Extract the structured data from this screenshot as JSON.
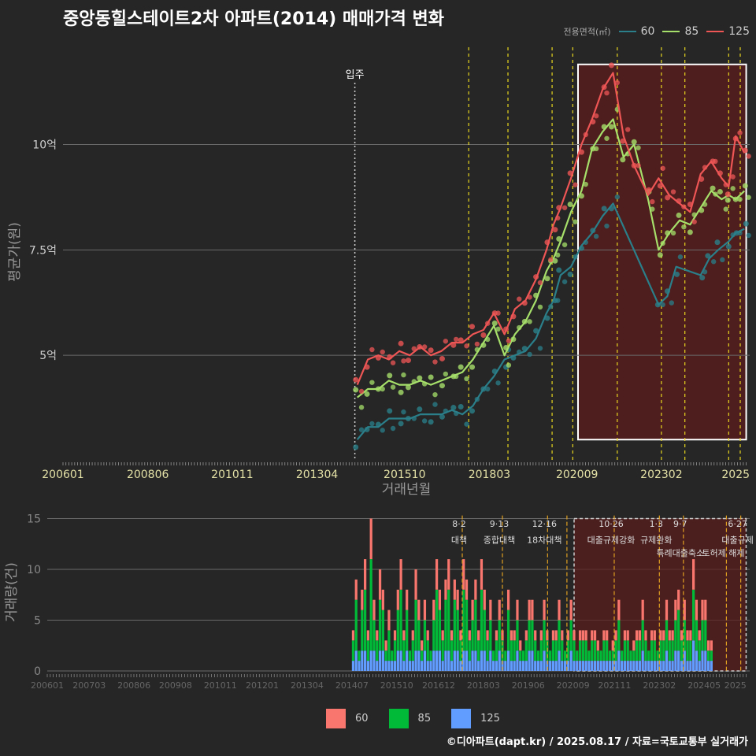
{
  "title": "중앙동힐스테이트2차 아파트(2014) 매매가격 변화",
  "footer": "©디아파트(dapt.kr) / 2025.08.17 / 자료=국토교통부 실거래가",
  "legend_title": "전용면적(㎡)",
  "colors": {
    "line60": "#2a7f8a",
    "line85": "#a6e06a",
    "line125": "#ee5555",
    "bar60": "#f8766d",
    "bar85": "#00ba38",
    "bar125": "#619cff",
    "policy": "#e8d71e",
    "highlight": "#5c1c1c"
  },
  "chart_data": [
    {
      "type": "line",
      "title": "중앙동힐스테이트2차 아파트(2014) 매매가격 변화",
      "xlabel": "거래년월",
      "ylabel": "평균가(원)",
      "x_ticks": [
        "200601",
        "200806",
        "201011",
        "201304",
        "201510",
        "201803",
        "202009",
        "202302",
        "2025"
      ],
      "y_ticks": [
        {
          "value": 5,
          "label": "5억"
        },
        {
          "value": 7.5,
          "label": "7.5억"
        },
        {
          "value": 10,
          "label": "10억"
        }
      ],
      "xlim": [
        2006.0,
        2025.6
      ],
      "ylim": [
        2.5,
        12.4
      ],
      "move_in": {
        "x": 2014.33,
        "label": "입주"
      },
      "policy_lines": [
        2017.58,
        2018.7,
        2019.96,
        2020.55,
        2021.82,
        2023.08,
        2023.75,
        2025.0,
        2025.33
      ],
      "highlight": {
        "x0": 2020.7,
        "x1": 2025.5,
        "y0": 3.0,
        "y1": 11.9
      },
      "series": [
        {
          "name": "60",
          "x": [
            2014.4,
            2014.7,
            2015.0,
            2015.3,
            2015.6,
            2015.9,
            2016.2,
            2016.5,
            2016.8,
            2017.1,
            2017.4,
            2017.7,
            2018.0,
            2018.3,
            2018.6,
            2018.9,
            2019.2,
            2019.5,
            2019.8,
            2020.0,
            2020.2,
            2020.5,
            2020.8,
            2021.1,
            2021.4,
            2021.7,
            2023.0,
            2023.25,
            2023.5,
            2024.2,
            2024.45,
            2024.7,
            2025.0,
            2025.2,
            2025.45
          ],
          "values": [
            3.0,
            3.3,
            3.3,
            3.5,
            3.5,
            3.5,
            3.6,
            3.6,
            3.6,
            3.7,
            3.6,
            3.8,
            4.2,
            4.5,
            4.9,
            5.0,
            5.1,
            5.4,
            6.0,
            6.3,
            6.9,
            7.1,
            7.6,
            7.9,
            8.3,
            8.6,
            6.2,
            6.4,
            7.1,
            6.9,
            7.3,
            7.5,
            7.7,
            7.9,
            8.0
          ]
        },
        {
          "name": "85",
          "x": [
            2014.4,
            2014.7,
            2015.0,
            2015.3,
            2015.6,
            2015.9,
            2016.2,
            2016.5,
            2016.8,
            2017.1,
            2017.4,
            2017.7,
            2018.0,
            2018.3,
            2018.6,
            2018.9,
            2019.2,
            2019.5,
            2019.8,
            2020.0,
            2020.2,
            2020.5,
            2020.8,
            2021.1,
            2021.4,
            2021.7,
            2022.0,
            2022.3,
            2022.7,
            2023.0,
            2023.3,
            2023.6,
            2023.9,
            2024.2,
            2024.5,
            2024.8,
            2025.0,
            2025.2,
            2025.45
          ],
          "values": [
            4.0,
            4.2,
            4.2,
            4.4,
            4.3,
            4.3,
            4.4,
            4.3,
            4.4,
            4.5,
            4.6,
            4.9,
            5.3,
            5.7,
            5.0,
            5.5,
            5.8,
            6.3,
            7.0,
            7.3,
            7.7,
            8.4,
            8.9,
            9.9,
            10.3,
            10.6,
            9.7,
            10.0,
            8.7,
            7.5,
            7.9,
            8.2,
            8.1,
            8.5,
            8.9,
            8.7,
            8.8,
            8.7,
            8.9
          ]
        },
        {
          "name": "125",
          "x": [
            2014.4,
            2014.7,
            2015.0,
            2015.3,
            2015.6,
            2015.9,
            2016.2,
            2016.5,
            2016.8,
            2017.1,
            2017.4,
            2017.7,
            2018.0,
            2018.3,
            2018.6,
            2018.9,
            2019.2,
            2019.5,
            2019.8,
            2020.0,
            2020.2,
            2020.5,
            2020.8,
            2021.1,
            2021.4,
            2021.7,
            2022.0,
            2022.3,
            2022.7,
            2023.0,
            2023.3,
            2023.6,
            2023.9,
            2024.2,
            2024.5,
            2024.8,
            2025.0,
            2025.2,
            2025.45
          ],
          "values": [
            4.3,
            4.9,
            5.0,
            4.9,
            5.1,
            5.0,
            5.2,
            5.0,
            5.1,
            5.3,
            5.3,
            5.5,
            5.6,
            6.0,
            5.5,
            6.1,
            6.3,
            6.8,
            7.5,
            8.1,
            8.5,
            9.2,
            10.0,
            10.6,
            11.3,
            11.7,
            10.2,
            9.5,
            8.8,
            9.2,
            8.8,
            8.6,
            8.4,
            9.3,
            9.6,
            9.2,
            9.0,
            10.2,
            9.8
          ]
        }
      ]
    },
    {
      "type": "bar",
      "xlabel": "",
      "ylabel": "거래량(건)",
      "x_ticks": [
        "200601",
        "200703",
        "200806",
        "200908",
        "201011",
        "201201",
        "201304",
        "201407",
        "201510",
        "201612",
        "201803",
        "201906",
        "202009",
        "202111",
        "202302",
        "202405",
        "2025"
      ],
      "y_ticks": [
        0,
        5,
        10,
        15
      ],
      "ylim": [
        0,
        15.5
      ],
      "xlim": [
        2006.0,
        2025.6
      ],
      "highlight": {
        "x0": 2020.7,
        "x1": 2025.5
      },
      "stack_order": [
        "125",
        "85",
        "60"
      ],
      "start": 2014.5,
      "month_step": 0.0833,
      "series": [
        {
          "name": "60",
          "values": [
            1,
            2,
            0,
            2,
            3,
            1,
            4,
            2,
            1,
            3,
            2,
            1,
            2,
            0,
            1,
            2,
            3,
            1,
            2,
            0,
            1,
            3,
            2,
            1,
            2,
            1,
            0,
            2,
            3,
            2,
            1,
            2,
            3,
            1,
            2,
            2,
            1,
            3,
            2,
            1,
            2,
            2,
            1,
            3,
            2,
            1,
            2,
            0,
            1,
            2,
            1,
            0,
            2,
            1,
            1,
            2,
            1,
            0,
            1,
            2,
            2,
            1,
            0,
            1,
            2,
            1,
            0,
            1,
            1,
            2,
            1,
            0,
            1,
            2,
            1,
            0,
            1,
            1,
            1,
            0,
            1,
            1,
            1,
            0,
            1,
            1,
            0,
            1,
            1,
            2,
            0,
            1,
            1,
            0,
            1,
            1,
            1,
            2,
            1,
            0,
            1,
            1,
            0,
            1,
            1,
            2,
            1,
            1,
            2,
            2,
            1,
            2,
            1,
            1,
            3,
            2,
            1,
            2,
            2,
            1,
            1
          ]
        },
        {
          "name": "85",
          "values": [
            2,
            5,
            1,
            4,
            6,
            2,
            9,
            3,
            2,
            5,
            4,
            1,
            3,
            1,
            2,
            4,
            6,
            2,
            4,
            1,
            2,
            5,
            3,
            1,
            3,
            2,
            1,
            3,
            6,
            4,
            2,
            5,
            6,
            2,
            5,
            4,
            2,
            6,
            5,
            2,
            3,
            5,
            2,
            6,
            4,
            2,
            3,
            1,
            2,
            3,
            2,
            1,
            4,
            2,
            2,
            3,
            1,
            1,
            2,
            3,
            3,
            2,
            1,
            2,
            3,
            2,
            1,
            2,
            2,
            3,
            2,
            1,
            2,
            3,
            2,
            1,
            2,
            2,
            2,
            1,
            2,
            2,
            1,
            1,
            2,
            2,
            1,
            1,
            2,
            3,
            1,
            2,
            2,
            1,
            1,
            2,
            2,
            3,
            2,
            1,
            2,
            2,
            1,
            2,
            2,
            3,
            2,
            2,
            3,
            4,
            2,
            3,
            2,
            2,
            5,
            3,
            2,
            3,
            3,
            1,
            1
          ]
        },
        {
          "name": "125",
          "values": [
            1,
            2,
            1,
            2,
            2,
            1,
            2,
            2,
            1,
            2,
            2,
            1,
            1,
            1,
            1,
            2,
            2,
            1,
            2,
            1,
            1,
            2,
            2,
            1,
            2,
            1,
            1,
            2,
            2,
            2,
            1,
            2,
            2,
            1,
            2,
            2,
            1,
            2,
            2,
            1,
            2,
            2,
            1,
            2,
            2,
            1,
            2,
            1,
            1,
            2,
            1,
            1,
            2,
            1,
            1,
            2,
            1,
            1,
            1,
            2,
            2,
            1,
            1,
            1,
            2,
            1,
            1,
            1,
            1,
            2,
            1,
            1,
            1,
            2,
            1,
            1,
            1,
            1,
            1,
            1,
            1,
            1,
            1,
            1,
            1,
            1,
            1,
            1,
            1,
            2,
            1,
            1,
            1,
            1,
            1,
            1,
            1,
            2,
            1,
            1,
            1,
            1,
            1,
            1,
            1,
            2,
            1,
            1,
            2,
            2,
            1,
            2,
            1,
            1,
            3,
            2,
            1,
            2,
            2,
            1,
            1
          ]
        }
      ],
      "policies": [
        {
          "x": 2017.58,
          "date": "8·2",
          "name": "대책"
        },
        {
          "x": 2018.7,
          "date": "9·13",
          "name": "종합대책"
        },
        {
          "x": 2019.96,
          "date": "12·16",
          "name": "18차대책"
        },
        {
          "x": 2020.5,
          "date": "",
          "name": ""
        },
        {
          "x": 2021.82,
          "date": "10·26",
          "name": "대출규제강화"
        },
        {
          "x": 2023.08,
          "date": "1·3",
          "name": "규제완화"
        },
        {
          "x": 2023.75,
          "date": "9·7",
          "name": "특례대출축소"
        },
        {
          "x": 2024.95,
          "date": "",
          "name": "토허제 해제"
        },
        {
          "x": 2025.35,
          "date": "6·27",
          "name": "대출규제"
        }
      ]
    }
  ]
}
